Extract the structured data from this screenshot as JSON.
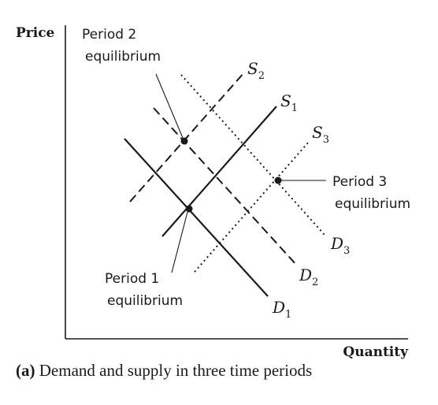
{
  "axes": {
    "y_label": "Price",
    "x_label": "Quantity"
  },
  "curves": [
    {
      "id": "S1",
      "letter": "S",
      "sub": "1",
      "style": "solid"
    },
    {
      "id": "S2",
      "letter": "S",
      "sub": "2",
      "style": "dashed"
    },
    {
      "id": "S3",
      "letter": "S",
      "sub": "3",
      "style": "dotted"
    },
    {
      "id": "D1",
      "letter": "D",
      "sub": "1",
      "style": "solid"
    },
    {
      "id": "D2",
      "letter": "D",
      "sub": "2",
      "style": "dashed"
    },
    {
      "id": "D3",
      "letter": "D",
      "sub": "3",
      "style": "dotted"
    }
  ],
  "equilibria": {
    "period1": {
      "line1": "Period 1",
      "line2": "equilibrium"
    },
    "period2": {
      "line1": "Period 2",
      "line2": "equilibrium"
    },
    "period3": {
      "line1": "Period 3",
      "line2": "equilibrium"
    }
  },
  "caption": {
    "tag": "(a)",
    "text": " Demand and supply in three time periods"
  },
  "colors": {
    "ink": "#1a1a1a"
  }
}
